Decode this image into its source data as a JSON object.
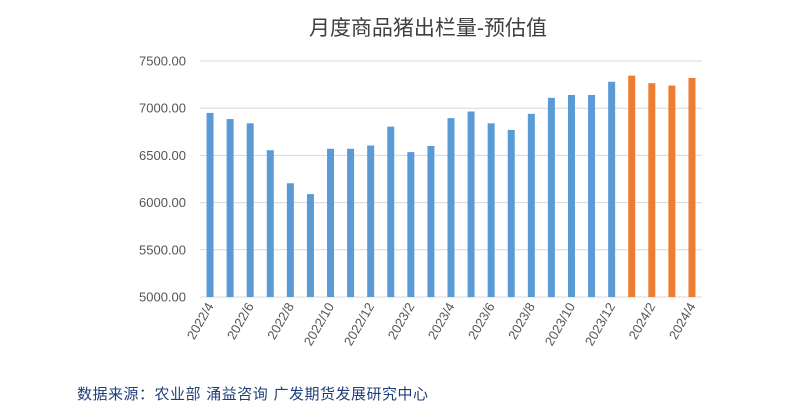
{
  "chart_data": {
    "type": "bar",
    "title": "月度商品猪出栏量-预估值",
    "xlabel": "",
    "ylabel": "",
    "ylim": [
      5000,
      7500
    ],
    "y_ticks": [
      "5000.00",
      "5500.00",
      "6000.00",
      "6500.00",
      "7000.00",
      "7500.00"
    ],
    "x_tick_labels": [
      "2022/4",
      "2022/6",
      "2022/8",
      "2022/10",
      "2022/12",
      "2023/2",
      "2023/4",
      "2023/6",
      "2023/8",
      "2023/10",
      "2023/12",
      "2024/2",
      "2024/4"
    ],
    "categories": [
      "2022/4",
      "2022/5",
      "2022/6",
      "2022/7",
      "2022/8",
      "2022/9",
      "2022/10",
      "2022/11",
      "2022/12",
      "2023/1",
      "2023/2",
      "2023/3",
      "2023/4",
      "2023/5",
      "2023/6",
      "2023/7",
      "2023/8",
      "2023/9",
      "2023/10",
      "2023/11",
      "2023/12",
      "2024/1",
      "2024/2",
      "2024/3",
      "2024/4"
    ],
    "values": [
      6950,
      6885,
      6840,
      6555,
      6205,
      6090,
      6570,
      6570,
      6605,
      6805,
      6535,
      6600,
      6895,
      6965,
      6840,
      6770,
      6940,
      7110,
      7140,
      7140,
      7280,
      7345,
      7265,
      7240,
      7320
    ],
    "series": [
      {
        "values": [
          6950,
          6885,
          6840,
          6555,
          6205,
          6090,
          6570,
          6570,
          6605,
          6805,
          6535,
          6600,
          6895,
          6965,
          6840,
          6770,
          6940,
          7110,
          7140,
          7140,
          7280,
          null,
          null,
          null,
          null
        ],
        "color": "#5b9bd5"
      },
      {
        "values": [
          null,
          null,
          null,
          null,
          null,
          null,
          null,
          null,
          null,
          null,
          null,
          null,
          null,
          null,
          null,
          null,
          null,
          null,
          null,
          null,
          null,
          7345,
          7265,
          7240,
          7320
        ],
        "color": "#ed7d31"
      }
    ],
    "grid": true,
    "legend": "none"
  },
  "source_text": "数据来源：农业部 涌益咨询 广发期货发展研究中心",
  "colors": {
    "actual": "#5b9bd5",
    "forecast": "#ed7d31",
    "grid": "#d9d9d9"
  }
}
